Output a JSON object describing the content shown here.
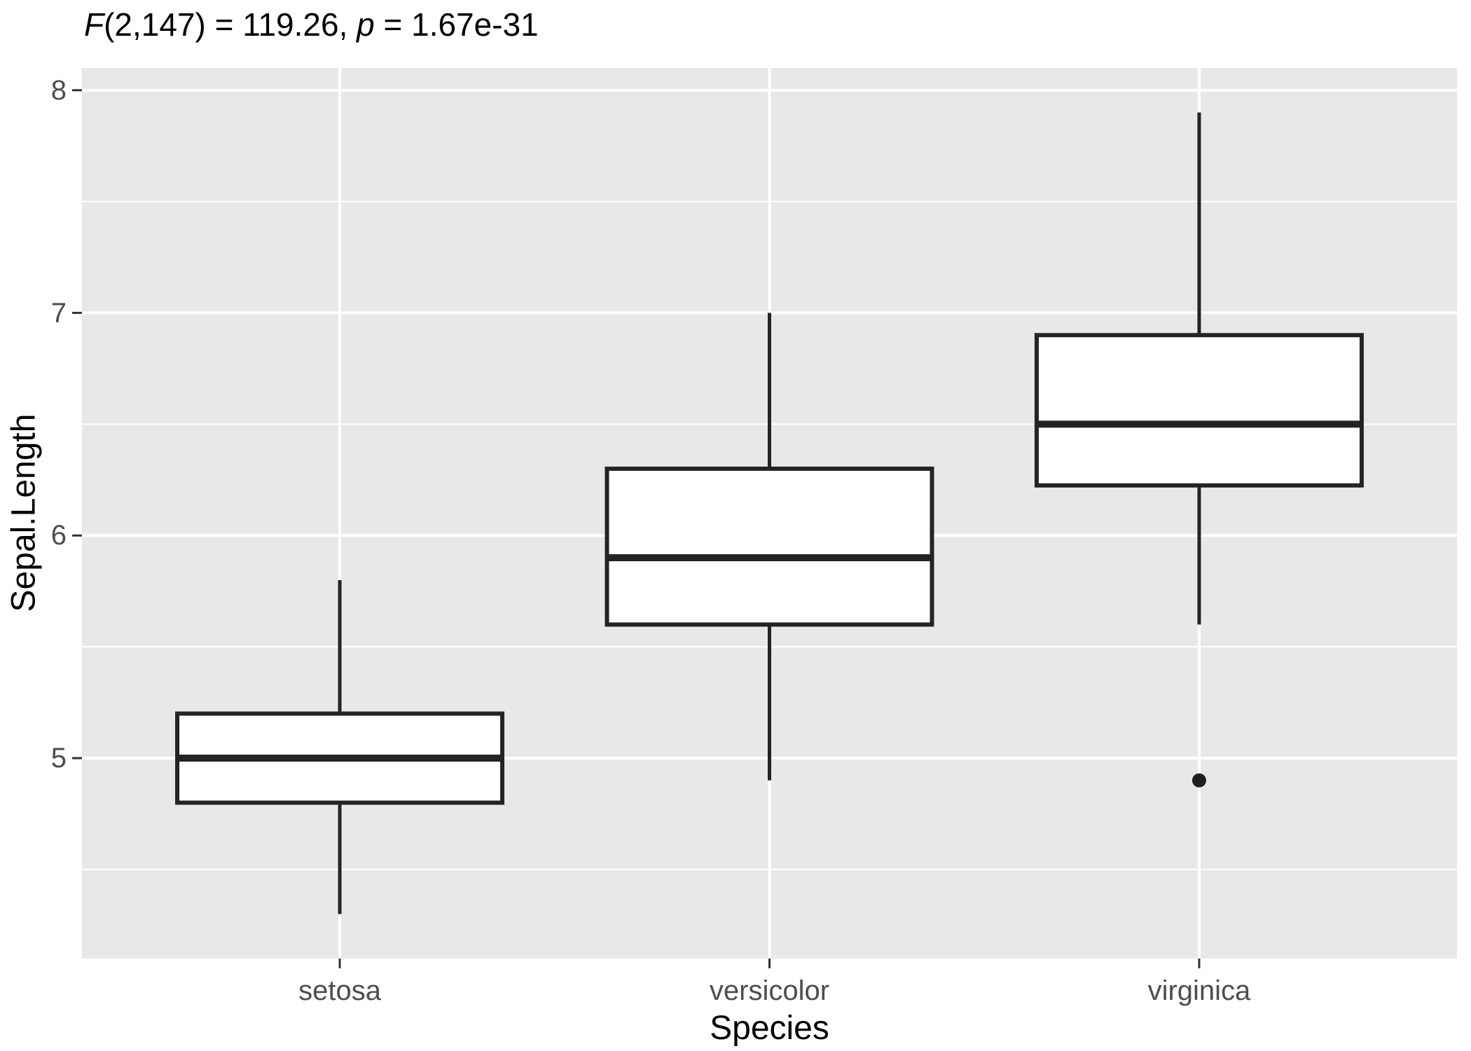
{
  "title": {
    "full_text": "F(2,147) = 119.26, p = 1.67e-31",
    "segments": [
      {
        "text": "F",
        "italic": true
      },
      {
        "text": "(2,147) = 119.26, ",
        "italic": false
      },
      {
        "text": "p",
        "italic": true
      },
      {
        "text": " = 1.67e-31",
        "italic": false
      }
    ]
  },
  "chart_data": {
    "type": "boxplot",
    "title": "F(2,147) = 119.26, p = 1.67e-31",
    "xlabel": "Species",
    "ylabel": "Sepal.Length",
    "categories": [
      "setosa",
      "versicolor",
      "virginica"
    ],
    "y_ticks": [
      5,
      6,
      7,
      8
    ],
    "y_minor_ticks": [
      4.5,
      5.5,
      6.5,
      7.5
    ],
    "ylim": [
      4.1,
      8.1
    ],
    "grid_on": true,
    "legend_position": "none",
    "series": [
      {
        "category": "setosa",
        "whisker_low": 4.3,
        "q1": 4.8,
        "median": 5.0,
        "q3": 5.2,
        "whisker_high": 5.8,
        "outliers": []
      },
      {
        "category": "versicolor",
        "whisker_low": 4.9,
        "q1": 5.6,
        "median": 5.9,
        "q3": 6.3,
        "whisker_high": 7.0,
        "outliers": []
      },
      {
        "category": "virginica",
        "whisker_low": 5.6,
        "q1": 6.225,
        "median": 6.5,
        "q3": 6.9,
        "whisker_high": 7.9,
        "outliers": [
          4.9
        ]
      }
    ],
    "colors": {
      "panel_background": "#E8E8E8",
      "grid": "#FFFFFF",
      "box_fill": "#FFFFFF",
      "box_stroke": "#242424",
      "median_stroke": "#242424",
      "outlier_fill": "#1F1F1F",
      "tick_mark": "#333333",
      "tick_label": "#4D4D4D",
      "axis_title": "#000000"
    }
  }
}
